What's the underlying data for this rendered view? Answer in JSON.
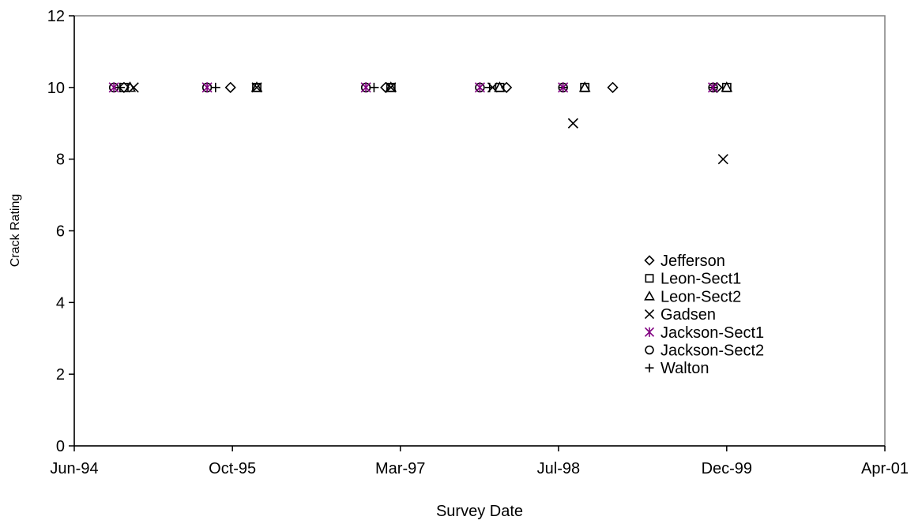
{
  "chart_data": {
    "type": "scatter",
    "xlabel": "Survey Date",
    "ylabel": "Crack Rating",
    "xlim": [
      "1994-06-01",
      "2001-04-01"
    ],
    "ylim": [
      0,
      12
    ],
    "x_ticks": [
      {
        "date": "1994-06-01",
        "label": "Jun-94"
      },
      {
        "date": "1995-10-01",
        "label": "Oct-95"
      },
      {
        "date": "1997-03-01",
        "label": "Mar-97"
      },
      {
        "date": "1998-07-01",
        "label": "Jul-98"
      },
      {
        "date": "1999-12-01",
        "label": "Dec-99"
      },
      {
        "date": "2001-04-01",
        "label": "Apr-01"
      }
    ],
    "y_ticks": [
      0,
      2,
      4,
      6,
      8,
      10,
      12
    ],
    "grid": false,
    "legend_position": "lower-right inside plot",
    "series": [
      {
        "name": "Jefferson",
        "marker": "diamond",
        "color": "#000000",
        "points": [
          {
            "x": "1994-11-01",
            "y": 10
          },
          {
            "x": "1995-09-25",
            "y": 10
          },
          {
            "x": "1997-01-15",
            "y": 10
          },
          {
            "x": "1998-01-22",
            "y": 10
          },
          {
            "x": "1998-12-15",
            "y": 10
          },
          {
            "x": "1999-11-01",
            "y": 10
          }
        ]
      },
      {
        "name": "Leon-Sect1",
        "marker": "square",
        "color": "#000000",
        "points": [
          {
            "x": "1994-11-01",
            "y": 10
          },
          {
            "x": "1995-12-15",
            "y": 10
          },
          {
            "x": "1997-01-31",
            "y": 10
          },
          {
            "x": "1998-01-01",
            "y": 10
          },
          {
            "x": "1998-09-20",
            "y": 10
          },
          {
            "x": "1999-12-01",
            "y": 10
          }
        ]
      },
      {
        "name": "Leon-Sect2",
        "marker": "triangle",
        "color": "#000000",
        "points": [
          {
            "x": "1994-11-20",
            "y": 10
          },
          {
            "x": "1995-12-15",
            "y": 10
          },
          {
            "x": "1997-01-31",
            "y": 10
          },
          {
            "x": "1998-01-01",
            "y": 10
          },
          {
            "x": "1998-09-20",
            "y": 10
          },
          {
            "x": "1999-12-01",
            "y": 10
          }
        ]
      },
      {
        "name": "Gadsen",
        "marker": "x",
        "color": "#000000",
        "points": [
          {
            "x": "1994-12-01",
            "y": 10
          },
          {
            "x": "1995-12-15",
            "y": 10
          },
          {
            "x": "1997-01-31",
            "y": 10
          },
          {
            "x": "1997-12-10",
            "y": 10
          },
          {
            "x": "1998-08-15",
            "y": 9
          },
          {
            "x": "1999-11-20",
            "y": 8
          }
        ]
      },
      {
        "name": "Jackson-Sect1",
        "marker": "asterisk",
        "color": "#800080",
        "points": [
          {
            "x": "1994-10-01",
            "y": 10
          },
          {
            "x": "1995-07-15",
            "y": 10
          },
          {
            "x": "1996-11-15",
            "y": 10
          },
          {
            "x": "1997-11-01",
            "y": 10
          },
          {
            "x": "1998-07-15",
            "y": 10
          },
          {
            "x": "1999-10-20",
            "y": 10
          }
        ]
      },
      {
        "name": "Jackson-Sect2",
        "marker": "circle",
        "color": "#000000",
        "points": [
          {
            "x": "1994-10-01",
            "y": 10
          },
          {
            "x": "1995-07-15",
            "y": 10
          },
          {
            "x": "1996-11-15",
            "y": 10
          },
          {
            "x": "1997-11-01",
            "y": 10
          },
          {
            "x": "1998-07-15",
            "y": 10
          },
          {
            "x": "1999-10-20",
            "y": 10
          }
        ]
      },
      {
        "name": "Walton",
        "marker": "plus",
        "color": "#000000",
        "points": [
          {
            "x": "1994-10-20",
            "y": 10
          },
          {
            "x": "1995-08-10",
            "y": 10
          },
          {
            "x": "1996-12-10",
            "y": 10
          },
          {
            "x": "1997-12-01",
            "y": 10
          },
          {
            "x": "1998-07-15",
            "y": 10
          },
          {
            "x": "1999-10-20",
            "y": 10
          }
        ]
      }
    ]
  }
}
